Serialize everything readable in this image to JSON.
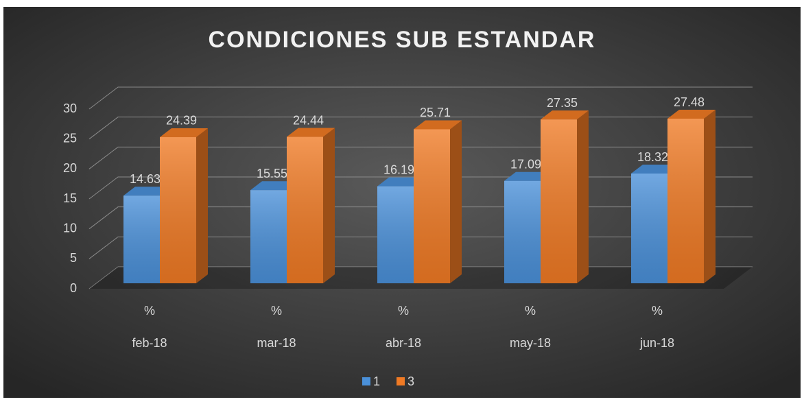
{
  "chart_data": {
    "type": "bar3d",
    "title": "CONDICIONES SUB ESTANDAR",
    "categories": [
      "%",
      "%",
      "%",
      "%",
      "%"
    ],
    "category_groups": [
      "feb-18",
      "mar-18",
      "abr-18",
      "may-18",
      "jun-18"
    ],
    "series": [
      {
        "name": "1",
        "color": "#4a90d9",
        "values": [
          14.63,
          15.55,
          16.19,
          17.09,
          18.32
        ]
      },
      {
        "name": "3",
        "color": "#f07a24",
        "values": [
          24.39,
          24.44,
          25.71,
          27.35,
          27.48
        ]
      }
    ],
    "ylim": [
      0,
      30
    ],
    "yticks": [
      0,
      5,
      10,
      15,
      20,
      25,
      30
    ],
    "grid": true,
    "legend": "bottom"
  }
}
